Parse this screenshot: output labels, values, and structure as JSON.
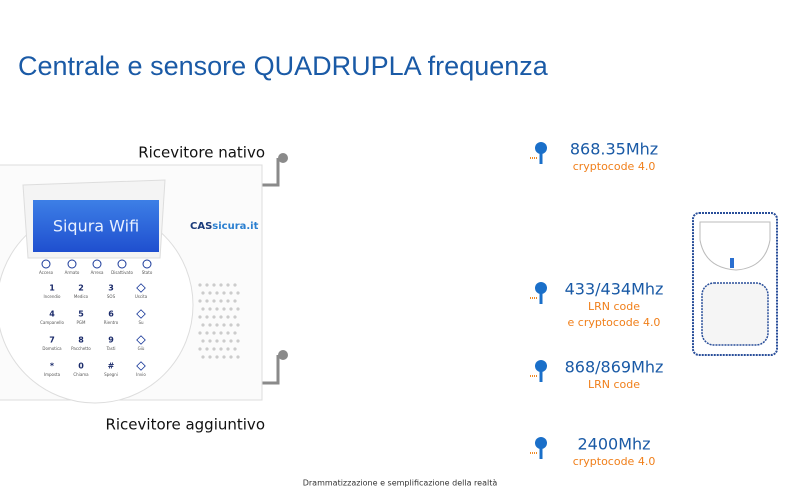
{
  "header": {
    "title": "Centrale e sensore QUADRUPLA frequenza"
  },
  "receivers": {
    "native": "Ricevitore nativo",
    "additional": "Ricevitore aggiuntivo"
  },
  "device": {
    "screen": "Siqura Wifi",
    "brand_left": "CAS",
    "brand_right": "sicura.it",
    "function_keys": [
      "Acceso",
      "Armato",
      "Arresa",
      "Disattivato",
      "Stato"
    ],
    "keys": [
      [
        {
          "symbol": "1",
          "label": "Incendio"
        },
        {
          "symbol": "2",
          "label": "Medico"
        },
        {
          "symbol": "3",
          "label": "SOS"
        },
        {
          "label": "Uscita"
        }
      ],
      [
        {
          "symbol": "4",
          "label": "Campanello"
        },
        {
          "symbol": "5",
          "label": "PGM"
        },
        {
          "symbol": "6",
          "label": "Rientro"
        },
        {
          "label": "Su"
        }
      ],
      [
        {
          "symbol": "7",
          "label": "Domotica"
        },
        {
          "symbol": "8",
          "label": "Pacchetto"
        },
        {
          "symbol": "9",
          "label": "Tasti"
        },
        {
          "label": "Giù"
        }
      ],
      [
        {
          "symbol": "*",
          "label": "Imposta"
        },
        {
          "symbol": "0",
          "label": "Chiama"
        },
        {
          "symbol": "#",
          "label": "Spegni"
        },
        {
          "label": "Invio"
        }
      ]
    ]
  },
  "frequencies": [
    {
      "freq": "868.35Mhz",
      "lines": [
        "cryptocode 4.0"
      ]
    },
    {
      "freq": "433/434Mhz",
      "lines": [
        "LRN code",
        "e cryptocode 4.0"
      ]
    },
    {
      "freq": "868/869Mhz",
      "lines": [
        "LRN code"
      ]
    },
    {
      "freq": "2400Mhz",
      "lines": [
        "cryptocode 4.0"
      ]
    }
  ],
  "footer": {
    "note": "Drammatizzazione e semplificazione della realtà"
  }
}
